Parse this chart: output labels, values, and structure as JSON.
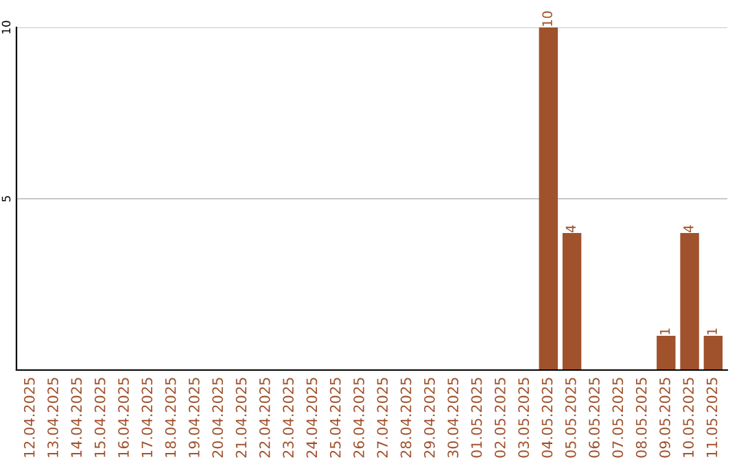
{
  "chart_data": {
    "type": "bar",
    "categories": [
      "12.04.2025",
      "13.04.2025",
      "14.04.2025",
      "15.04.2025",
      "16.04.2025",
      "17.04.2025",
      "18.04.2025",
      "19.04.2025",
      "20.04.2025",
      "21.04.2025",
      "22.04.2025",
      "23.04.2025",
      "24.04.2025",
      "25.04.2025",
      "26.04.2025",
      "27.04.2025",
      "28.04.2025",
      "29.04.2025",
      "30.04.2025",
      "01.05.2025",
      "02.05.2025",
      "03.05.2025",
      "04.05.2025",
      "05.05.2025",
      "06.05.2025",
      "07.05.2025",
      "08.05.2025",
      "09.05.2025",
      "10.05.2025",
      "11.05.2025"
    ],
    "values": [
      0,
      0,
      0,
      0,
      0,
      0,
      0,
      0,
      0,
      0,
      0,
      0,
      0,
      0,
      0,
      0,
      0,
      0,
      0,
      0,
      0,
      0,
      10,
      4,
      0,
      0,
      0,
      1,
      4,
      1
    ],
    "value_labels": [
      null,
      null,
      null,
      null,
      null,
      null,
      null,
      null,
      null,
      null,
      null,
      null,
      null,
      null,
      null,
      null,
      null,
      null,
      null,
      null,
      null,
      null,
      "10",
      "4",
      null,
      null,
      null,
      "1",
      "4",
      "1"
    ],
    "color": "#a0522d",
    "ylim": [
      0,
      10
    ],
    "yticks": [
      5,
      10
    ],
    "grid": "y"
  }
}
